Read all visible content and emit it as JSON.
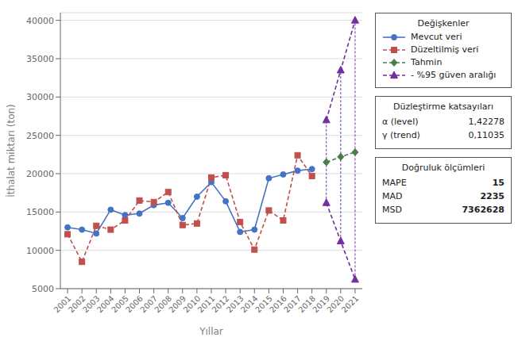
{
  "chart_data": {
    "type": "line",
    "xlabel": "Yıllar",
    "ylabel": "İthalat miktarı (ton)",
    "x": [
      2001,
      2002,
      2003,
      2004,
      2005,
      2006,
      2007,
      2008,
      2009,
      2010,
      2011,
      2012,
      2013,
      2014,
      2015,
      2016,
      2017,
      2018,
      2019,
      2020,
      2021
    ],
    "xlim": [
      2000.5,
      2021.5
    ],
    "xticks": [
      2001,
      2002,
      2003,
      2004,
      2005,
      2006,
      2007,
      2008,
      2009,
      2010,
      2011,
      2012,
      2013,
      2014,
      2015,
      2016,
      2017,
      2018,
      2019,
      2020,
      2021
    ],
    "ylim": [
      5000,
      41000
    ],
    "yticks": [
      5000,
      10000,
      15000,
      20000,
      25000,
      30000,
      35000,
      40000
    ],
    "grid": true,
    "legend": "right",
    "legend_title": "Değişkenler",
    "series": [
      {
        "name": "Mevcut veri",
        "color": "#4472c4",
        "marker": "circle",
        "line_style": "solid",
        "values": [
          13000,
          12700,
          12200,
          15300,
          14600,
          14800,
          15900,
          16200,
          14200,
          17000,
          18900,
          16400,
          12400,
          12700,
          19400,
          19900,
          20400,
          20600,
          null,
          null,
          null
        ]
      },
      {
        "name": "Düzeltilmiş veri",
        "color": "#c0504d",
        "marker": "square",
        "line_style": "dashed",
        "values": [
          12100,
          8500,
          13200,
          12700,
          13900,
          16500,
          16300,
          17600,
          13300,
          13500,
          19500,
          19800,
          13700,
          10100,
          15200,
          13900,
          22400,
          19700,
          null,
          null,
          null
        ]
      },
      {
        "name": "Tahmin",
        "color": "#4a7c4e",
        "marker": "diamond",
        "line_style": "dashed",
        "values": [
          null,
          null,
          null,
          null,
          null,
          null,
          null,
          null,
          null,
          null,
          null,
          null,
          null,
          null,
          null,
          null,
          null,
          null,
          21500,
          22200,
          22800
        ]
      },
      {
        "name": "- %95 güven aralığı",
        "color": "#7030a0",
        "marker": "triangle",
        "line_style": "dashed",
        "upper": [
          null,
          null,
          null,
          null,
          null,
          null,
          null,
          null,
          null,
          null,
          null,
          null,
          null,
          null,
          null,
          null,
          null,
          null,
          27000,
          33500,
          40000
        ],
        "lower": [
          null,
          null,
          null,
          null,
          null,
          null,
          null,
          null,
          null,
          null,
          null,
          null,
          null,
          null,
          null,
          null,
          null,
          null,
          16200,
          11200,
          6200
        ]
      }
    ],
    "info_boxes": [
      {
        "title": "Düzleştirme katsayıları",
        "rows": [
          {
            "label": "α (level)",
            "value": "1,42278"
          },
          {
            "label": "γ (trend)",
            "value": "0,11035"
          }
        ]
      },
      {
        "title": "Doğruluk ölçümleri",
        "rows": [
          {
            "label": "MAPE",
            "value": "15"
          },
          {
            "label": "MAD",
            "value": "2235"
          },
          {
            "label": "MSD",
            "value": "7362628"
          }
        ]
      }
    ]
  }
}
